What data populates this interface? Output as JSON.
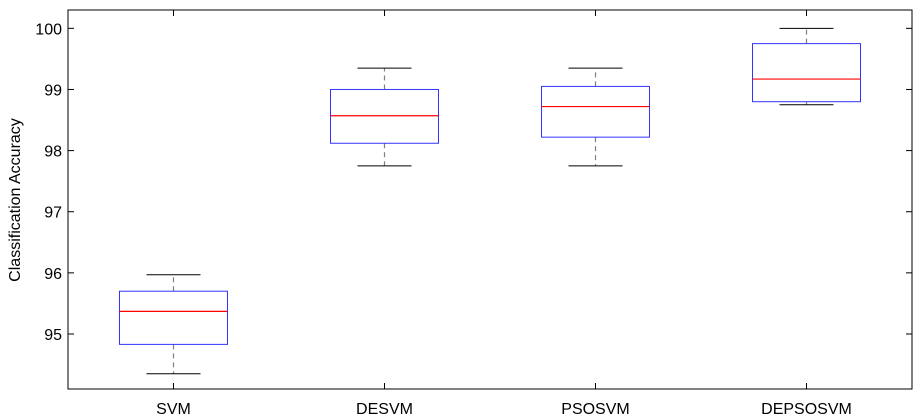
{
  "chart_data": {
    "type": "box",
    "ylabel": "Classification Accuracy",
    "ylim": [
      94.1,
      100.3
    ],
    "yticks": [
      95,
      96,
      97,
      98,
      99,
      100
    ],
    "grid": false,
    "categories": [
      "SVM",
      "DESVM",
      "PSOSVM",
      "DEPSOSVM"
    ],
    "boxes": [
      {
        "category": "SVM",
        "whisker_low": 94.35,
        "q1": 94.83,
        "median": 95.37,
        "q3": 95.7,
        "whisker_high": 95.97
      },
      {
        "category": "DESVM",
        "whisker_low": 97.75,
        "q1": 98.12,
        "median": 98.57,
        "q3": 99.0,
        "whisker_high": 99.35
      },
      {
        "category": "PSOSVM",
        "whisker_low": 97.75,
        "q1": 98.22,
        "median": 98.72,
        "q3": 99.05,
        "whisker_high": 99.35
      },
      {
        "category": "DEPSOSVM",
        "whisker_low": 98.75,
        "q1": 98.8,
        "median": 99.17,
        "q3": 99.75,
        "whisker_high": 100.0
      }
    ],
    "colors": {
      "box": "#3333ff",
      "median": "#ff0000",
      "whisker": "#808080",
      "cap": "#000000",
      "axis": "#000000"
    }
  }
}
